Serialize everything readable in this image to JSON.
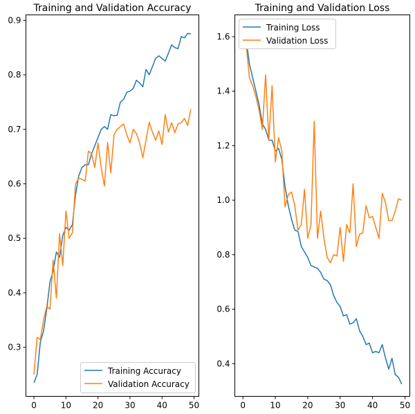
{
  "chart_data": [
    {
      "type": "line",
      "title": "Training and Validation Accuracy",
      "xlabel": "",
      "ylabel": "",
      "xlim": [
        -2.5,
        51.5
      ],
      "ylim": [
        0.21,
        0.91
      ],
      "xticks": [
        0,
        10,
        20,
        30,
        40,
        50
      ],
      "yticks": [
        0.3,
        0.4,
        0.5,
        0.6,
        0.7,
        0.8,
        0.9
      ],
      "grid": false,
      "legend": "lower right",
      "x": [
        0,
        1,
        2,
        3,
        4,
        5,
        6,
        7,
        8,
        9,
        10,
        11,
        12,
        13,
        14,
        15,
        16,
        17,
        18,
        19,
        20,
        21,
        22,
        23,
        24,
        25,
        26,
        27,
        28,
        29,
        30,
        31,
        32,
        33,
        34,
        35,
        36,
        37,
        38,
        39,
        40,
        41,
        42,
        43,
        44,
        45,
        46,
        47,
        48,
        49
      ],
      "series": [
        {
          "name": "Training Accuracy",
          "color": "#1f77b4",
          "values": [
            0.235,
            0.25,
            0.31,
            0.33,
            0.37,
            0.42,
            0.44,
            0.475,
            0.465,
            0.505,
            0.52,
            0.515,
            0.525,
            0.58,
            0.615,
            0.63,
            0.635,
            0.635,
            0.655,
            0.67,
            0.685,
            0.7,
            0.705,
            0.7,
            0.727,
            0.725,
            0.726,
            0.75,
            0.755,
            0.768,
            0.77,
            0.775,
            0.79,
            0.785,
            0.778,
            0.81,
            0.8,
            0.815,
            0.83,
            0.835,
            0.83,
            0.825,
            0.84,
            0.855,
            0.85,
            0.848,
            0.87,
            0.868,
            0.876,
            0.875
          ]
        },
        {
          "name": "Validation Accuracy",
          "color": "#ff7f0e",
          "values": [
            0.25,
            0.318,
            0.314,
            0.35,
            0.375,
            0.37,
            0.46,
            0.39,
            0.508,
            0.45,
            0.55,
            0.5,
            0.51,
            0.6,
            0.61,
            0.608,
            0.605,
            0.66,
            0.655,
            0.63,
            0.675,
            0.63,
            0.596,
            0.676,
            0.62,
            0.69,
            0.7,
            0.705,
            0.71,
            0.69,
            0.675,
            0.7,
            0.692,
            0.675,
            0.648,
            0.68,
            0.713,
            0.695,
            0.68,
            0.697,
            0.672,
            0.727,
            0.695,
            0.712,
            0.694,
            0.71,
            0.712,
            0.72,
            0.707,
            0.737
          ]
        }
      ]
    },
    {
      "type": "line",
      "title": "Training and Validation Loss",
      "xlabel": "",
      "ylabel": "",
      "xlim": [
        -2.5,
        51.5
      ],
      "ylim": [
        0.28,
        1.68
      ],
      "xticks": [
        0,
        10,
        20,
        30,
        40,
        50
      ],
      "yticks": [
        0.4,
        0.6,
        0.8,
        1.0,
        1.2,
        1.4,
        1.6
      ],
      "grid": false,
      "legend": "upper left",
      "x": [
        0,
        1,
        2,
        3,
        4,
        5,
        6,
        7,
        8,
        9,
        10,
        11,
        12,
        13,
        14,
        15,
        16,
        17,
        18,
        19,
        20,
        21,
        22,
        23,
        24,
        25,
        26,
        27,
        28,
        29,
        30,
        31,
        32,
        33,
        34,
        35,
        36,
        37,
        38,
        39,
        40,
        41,
        42,
        43,
        44,
        45,
        46,
        47,
        48,
        49
      ],
      "series": [
        {
          "name": "Training Loss",
          "color": "#1f77b4",
          "values": [
            1.6,
            1.59,
            1.5,
            1.45,
            1.4,
            1.35,
            1.28,
            1.26,
            1.22,
            1.22,
            1.18,
            1.19,
            1.15,
            1.05,
            0.98,
            0.93,
            0.89,
            0.885,
            0.83,
            0.81,
            0.79,
            0.76,
            0.755,
            0.75,
            0.735,
            0.71,
            0.705,
            0.69,
            0.65,
            0.625,
            0.61,
            0.575,
            0.58,
            0.545,
            0.55,
            0.565,
            0.52,
            0.5,
            0.47,
            0.475,
            0.44,
            0.445,
            0.44,
            0.47,
            0.42,
            0.38,
            0.42,
            0.36,
            0.35,
            0.325
          ]
        },
        {
          "name": "Validation Loss",
          "color": "#ff7f0e",
          "values": [
            1.6,
            1.57,
            1.45,
            1.42,
            1.38,
            1.33,
            1.26,
            1.46,
            1.22,
            1.42,
            1.14,
            1.23,
            1.18,
            0.975,
            1.02,
            1.03,
            0.98,
            0.89,
            0.91,
            1.04,
            0.86,
            0.91,
            1.29,
            0.86,
            0.96,
            0.86,
            0.79,
            0.77,
            0.8,
            0.795,
            0.9,
            0.775,
            0.91,
            0.88,
            1.06,
            0.83,
            0.875,
            0.88,
            0.98,
            0.935,
            0.94,
            0.9,
            0.86,
            1.025,
            0.99,
            0.925,
            0.925,
            0.96,
            1.005,
            1.0
          ]
        }
      ]
    }
  ]
}
